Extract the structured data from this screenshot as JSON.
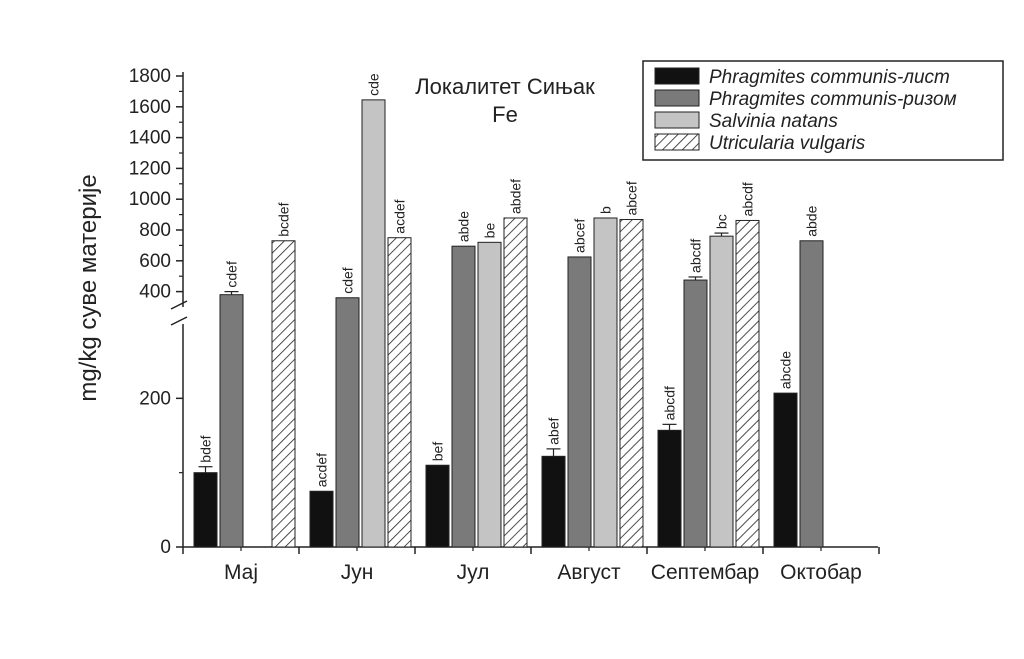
{
  "chart_data": {
    "type": "bar",
    "title": "Локалитет Сињак",
    "subtitle": "Fe",
    "xlabel": "",
    "ylabel": "mg/kg суве материје",
    "categories": [
      "Мај",
      "Јун",
      "Јул",
      "Август",
      "Септембар",
      "Октобар"
    ],
    "axis_break": {
      "lower_ylim": [
        0,
        300
      ],
      "upper_ylim": [
        300,
        1800
      ]
    },
    "yticks_lower": [
      "0",
      "200"
    ],
    "yticks_upper": [
      "400",
      "600",
      "800",
      "1000",
      "1200",
      "1400",
      "1600",
      "1800"
    ],
    "legend_position": "top-right",
    "grid": false,
    "series": [
      {
        "name": "Phragmites communis-лист",
        "color": "#111111",
        "pattern": "solid",
        "values": [
          100,
          75,
          110,
          122,
          157,
          207
        ],
        "errors": [
          8,
          0,
          0,
          10,
          8,
          0
        ],
        "labels": [
          "bdef",
          "acdef",
          "bef",
          "abef",
          "abcdf",
          "abcde"
        ]
      },
      {
        "name": "Phragmites communis-ризом",
        "color": "#7a7a7a",
        "pattern": "solid",
        "values": [
          380,
          360,
          695,
          625,
          475,
          730
        ],
        "errors": [
          20,
          0,
          0,
          0,
          20,
          0
        ],
        "labels": [
          "cdef",
          "cdef",
          "abde",
          "abcef",
          "abcdf",
          "abde"
        ]
      },
      {
        "name": "Salvinia natans",
        "color": "#c4c4c4",
        "pattern": "solid",
        "values": [
          null,
          1645,
          720,
          878,
          760,
          null
        ],
        "errors": [
          0,
          0,
          0,
          0,
          20,
          0
        ],
        "labels": [
          "",
          "cde",
          "be",
          "b",
          "bc",
          ""
        ]
      },
      {
        "name": "Utricularia vulgaris",
        "color": "#ffffff",
        "pattern": "hatch",
        "values": [
          730,
          750,
          878,
          868,
          862,
          null
        ],
        "errors": [
          0,
          0,
          0,
          0,
          0,
          0
        ],
        "labels": [
          "bcdef",
          "acdef",
          "abdef",
          "abcef",
          "abcdf",
          ""
        ]
      }
    ]
  }
}
